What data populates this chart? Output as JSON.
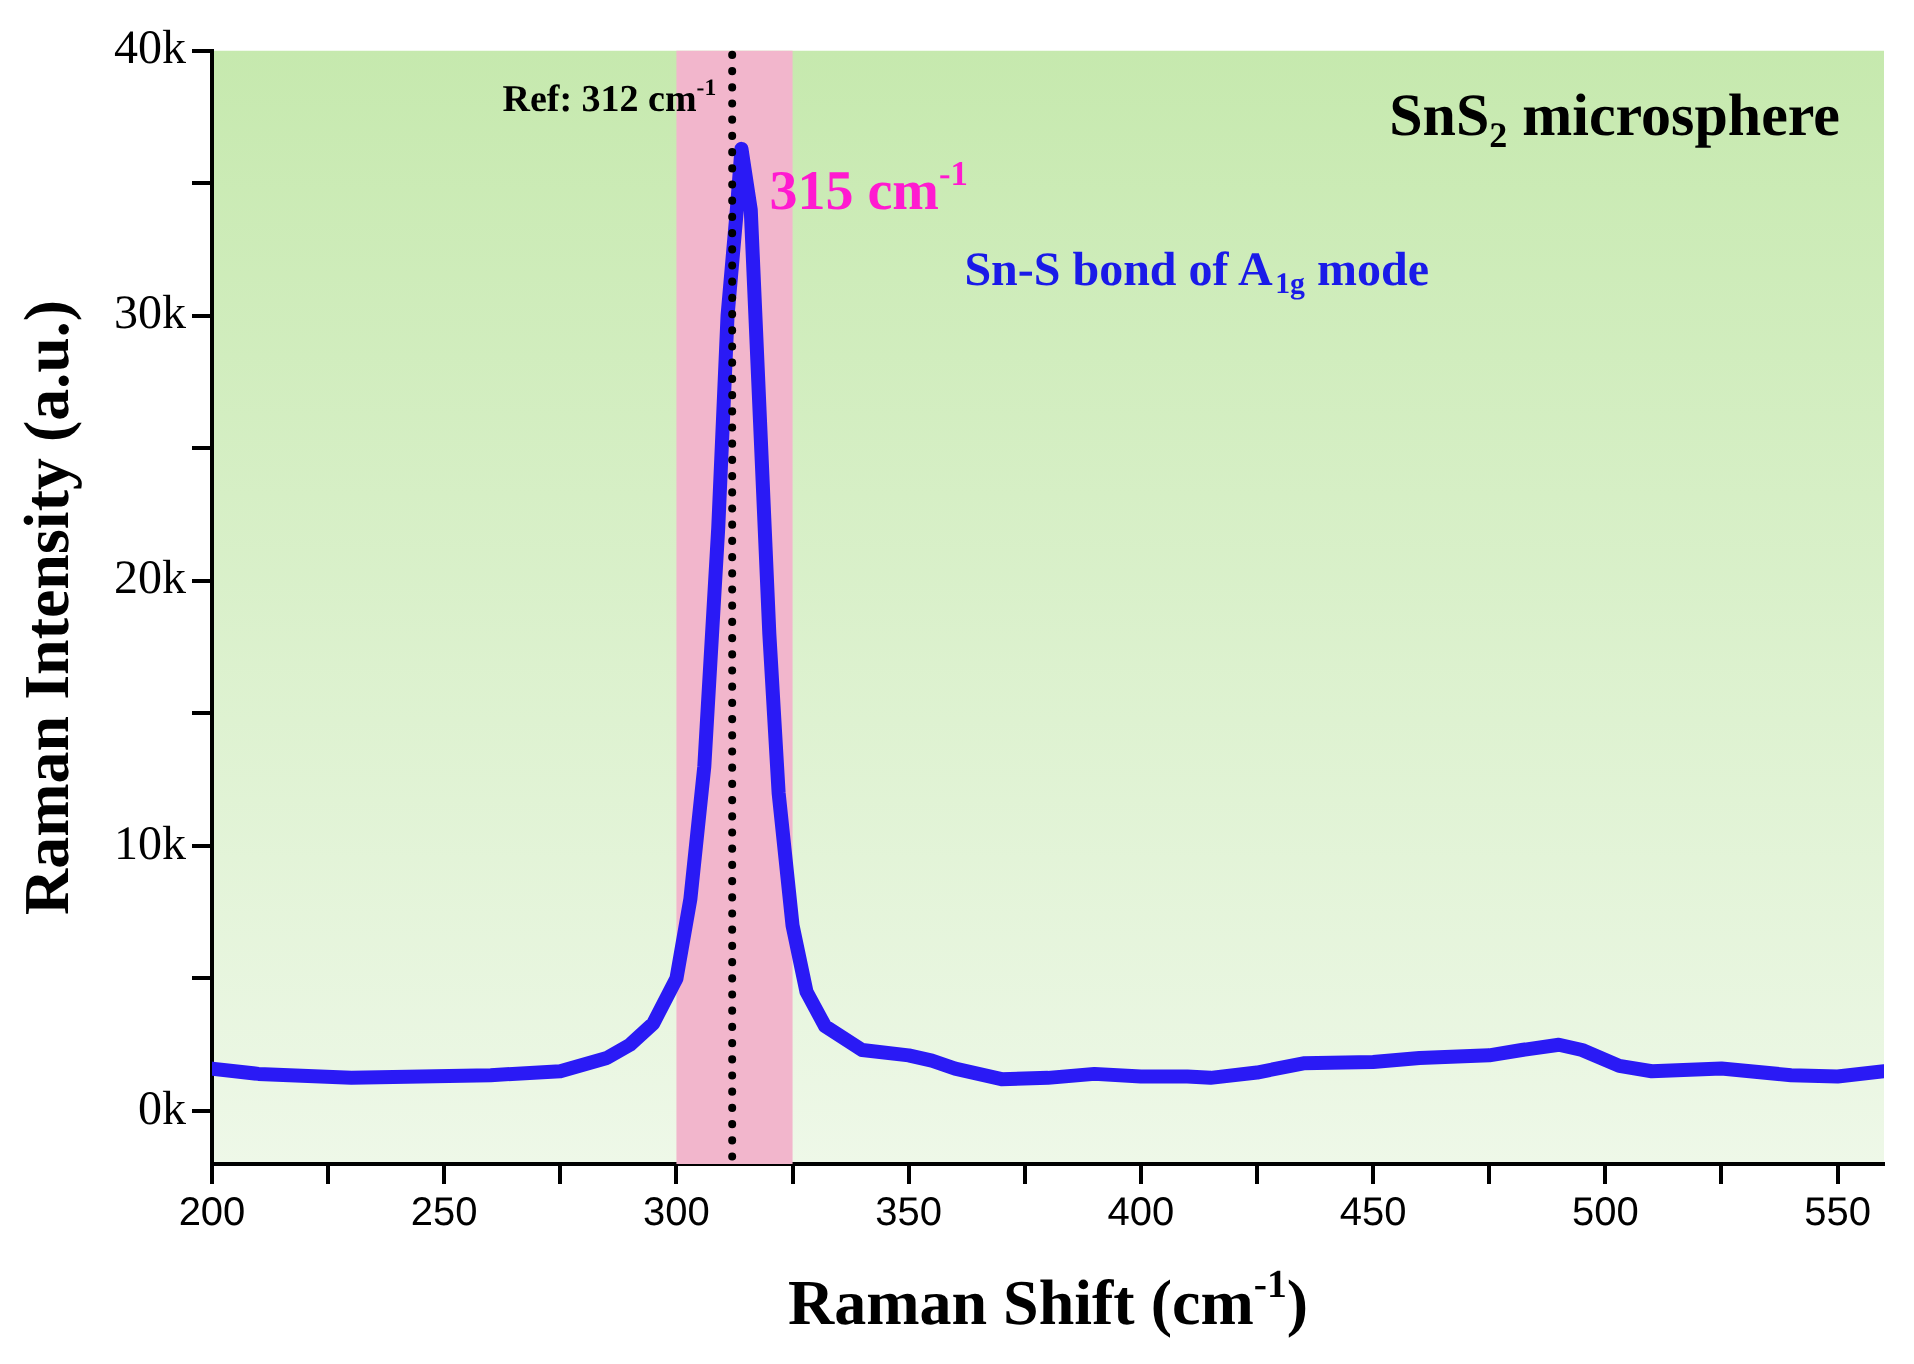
{
  "chart_data": {
    "type": "line",
    "title": "SnS₂ microsphere",
    "xlabel": "Raman Shift (cm$^{-1}$)",
    "ylabel": "Raman Intensity (a.u.)",
    "x": [
      200,
      210,
      230,
      260,
      275,
      285,
      290,
      295,
      300,
      303,
      306,
      309,
      311,
      313,
      314,
      316,
      318,
      320,
      322,
      325,
      328,
      332,
      340,
      350,
      355,
      360,
      370,
      380,
      390,
      400,
      410,
      415,
      425,
      435,
      450,
      460,
      475,
      482,
      490,
      495,
      503,
      510,
      525,
      540,
      550,
      560
    ],
    "series": [
      {
        "color": "#2a1af5",
        "values": [
          1600,
          1400,
          1250,
          1350,
          1500,
          2000,
          2500,
          3300,
          5000,
          8000,
          13000,
          22000,
          30000,
          34000,
          36300,
          34000,
          26000,
          18000,
          12000,
          7000,
          4500,
          3200,
          2300,
          2100,
          1900,
          1600,
          1200,
          1250,
          1400,
          1300,
          1300,
          1250,
          1450,
          1800,
          1850,
          2000,
          2100,
          2300,
          2500,
          2300,
          1700,
          1500,
          1600,
          1350,
          1300,
          1500
        ]
      }
    ],
    "xlim": [
      200,
      560
    ],
    "ylim": [
      -2000,
      40000
    ],
    "xticks": [
      200,
      {
        "value": 225,
        "label": null
      },
      250,
      {
        "value": 275,
        "label": null
      },
      300,
      {
        "value": 325,
        "label": null
      },
      350,
      {
        "value": 375,
        "label": null
      },
      400,
      {
        "value": 425,
        "label": null
      },
      450,
      {
        "value": 475,
        "label": null
      },
      500,
      {
        "value": 525,
        "label": null
      },
      550
    ],
    "yticks": [
      {
        "value": 0,
        "label": "0k"
      },
      {
        "value": 5000,
        "label": null
      },
      {
        "value": 10000,
        "label": "10k"
      },
      {
        "value": 15000,
        "label": null
      },
      {
        "value": 20000,
        "label": "20k"
      },
      {
        "value": 25000,
        "label": null
      },
      {
        "value": 30000,
        "label": "30k"
      },
      {
        "value": 35000,
        "label": null
      },
      {
        "value": 40000,
        "label": "40k"
      }
    ],
    "ref_lines": [
      {
        "axis": "x",
        "value": 312,
        "label": "Ref: 312 cm$^{-1}$",
        "color": "#000000",
        "line_style": "dotted"
      }
    ],
    "bands": [
      {
        "axis": "x",
        "from": 300,
        "to": 325,
        "color": "#f2b6cc"
      }
    ],
    "annotations": [
      {
        "text": "315 cm$^{-1}$",
        "x": 314,
        "y": 36300
      },
      "Sn-S bond of A$_{1g}$ mode"
    ],
    "grid": false,
    "legend": false,
    "marker": "none",
    "line_style": "solid"
  }
}
